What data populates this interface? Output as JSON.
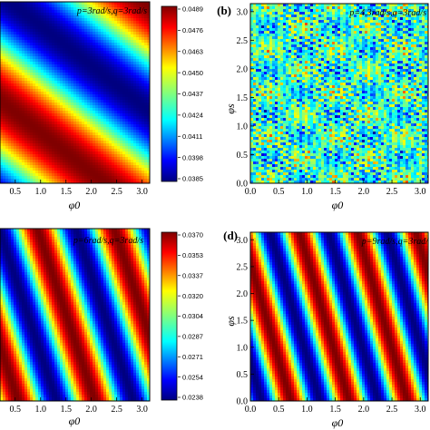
{
  "chart_data": [
    {
      "type": "heatmap",
      "panel_label": "",
      "annotation": "p=3rad/s,q=3rad/s",
      "xlabel": "φ0",
      "ylabel": "",
      "xticks": [
        "0.5",
        "1.0",
        "1.5",
        "2.0",
        "2.5",
        "3.0"
      ],
      "yticks": [],
      "xlim": [
        0.2,
        3.15
      ],
      "ylim": [
        0,
        3.14
      ],
      "colorbar": {
        "ticks": [
          "0.0489",
          "0.0476",
          "0.0463",
          "0.0450",
          "0.0437",
          "0.0424",
          "0.0411",
          "0.0398",
          "0.0385"
        ],
        "range": [
          0.0385,
          0.0489
        ]
      },
      "pattern": "diagonal bands, one period across panel"
    },
    {
      "type": "heatmap",
      "panel_label": "(b)",
      "annotation": "p=4.3rad/s,q=3rad/s",
      "xlabel": "φ0",
      "ylabel": "φs",
      "xticks": [
        "0.0",
        "0.5",
        "1.0",
        "1.5",
        "2.0",
        "2.5",
        "3.0"
      ],
      "yticks": [
        "0.0",
        "0.5",
        "1.0",
        "1.5",
        "2.0",
        "2.5",
        "3.0"
      ],
      "xlim": [
        0,
        3.14
      ],
      "ylim": [
        0,
        3.14
      ],
      "pattern": "fine irregular speckle, mostly cyan-green"
    },
    {
      "type": "heatmap",
      "panel_label": "",
      "annotation": "p=6rad/s,q=3rad/s",
      "xlabel": "φ0",
      "ylabel": "",
      "xticks": [
        "0.5",
        "1.0",
        "1.5",
        "2.0",
        "2.5",
        "3.0"
      ],
      "yticks": [],
      "xlim": [
        0.2,
        3.15
      ],
      "ylim": [
        0,
        3.14
      ],
      "colorbar": {
        "ticks": [
          "0.0370",
          "0.0353",
          "0.0337",
          "0.0320",
          "0.0304",
          "0.0287",
          "0.0271",
          "0.0254",
          "0.0238"
        ],
        "range": [
          0.0238,
          0.037
        ]
      },
      "pattern": "steep diagonal bands, about two periods"
    },
    {
      "type": "heatmap",
      "panel_label": "(d)",
      "annotation": "p=9rad/s,q=3rad/",
      "xlabel": "φ0",
      "ylabel": "φs",
      "xticks": [
        "0.0",
        "0.5",
        "1.0",
        "1.5",
        "2.0",
        "2.5",
        "3.0"
      ],
      "yticks": [
        "0.0",
        "0.5",
        "1.0",
        "1.5",
        "2.0",
        "2.5",
        "3.0"
      ],
      "xlim": [
        0,
        3.14
      ],
      "ylim": [
        0,
        3.14
      ],
      "pattern": "steep diagonal bands, about three periods"
    }
  ]
}
